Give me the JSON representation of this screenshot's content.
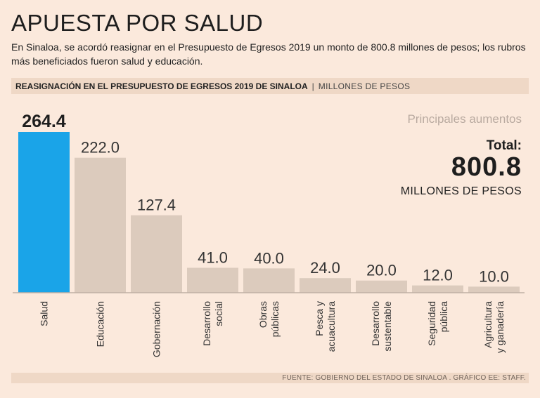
{
  "header": {
    "title": "APUESTA POR SALUD",
    "subtitle": "En Sinaloa, se acordó reasignar en el Presupuesto de Egresos 2019 un monto de 800.8 millones de pesos; los rubros más beneficiados fueron salud y educación.",
    "band_title": "REASIGNACIÓN EN EL PRESUPUESTO DE EGRESOS 2019 DE SINALOA",
    "band_separator": "|",
    "band_unit": "MILLONES DE PESOS"
  },
  "summary": {
    "principal_label": "Principales aumentos",
    "total_label": "Total:",
    "total_value": "800.8",
    "total_unit": "MILLONES DE PESOS"
  },
  "chart_data": {
    "type": "bar",
    "title": "REASIGNACIÓN EN EL PRESUPUESTO DE EGRESOS 2019 DE SINALOA",
    "ylabel": "MILLONES DE PESOS",
    "ylim": [
      0,
      264.4
    ],
    "categories": [
      [
        "Salud"
      ],
      [
        "Educación"
      ],
      [
        "Gobernación"
      ],
      [
        "Desarrollo",
        "social"
      ],
      [
        "Obras",
        "públicas"
      ],
      [
        "Pesca y",
        "acuacultura"
      ],
      [
        "Desarrollo",
        "sustentable"
      ],
      [
        "Seguridad",
        "pública"
      ],
      [
        "Agricultura",
        "y ganadería"
      ]
    ],
    "values": [
      264.4,
      222.0,
      127.4,
      41.0,
      40.0,
      24.0,
      20.0,
      12.0,
      10.0
    ],
    "value_labels": [
      "264.4",
      "222.0",
      "127.4",
      "41.0",
      "40.0",
      "24.0",
      "20.0",
      "12.0",
      "10.0"
    ],
    "highlight_index": 0
  },
  "colors": {
    "highlight": "#1aa4e8",
    "bar": "#dccbbd",
    "baseline": "#bfb0a4"
  },
  "footer": {
    "source": "FUENTE: GOBIERNO DEL ESTADO DE SINALOA . GRÁFICO EE: STAFF."
  }
}
